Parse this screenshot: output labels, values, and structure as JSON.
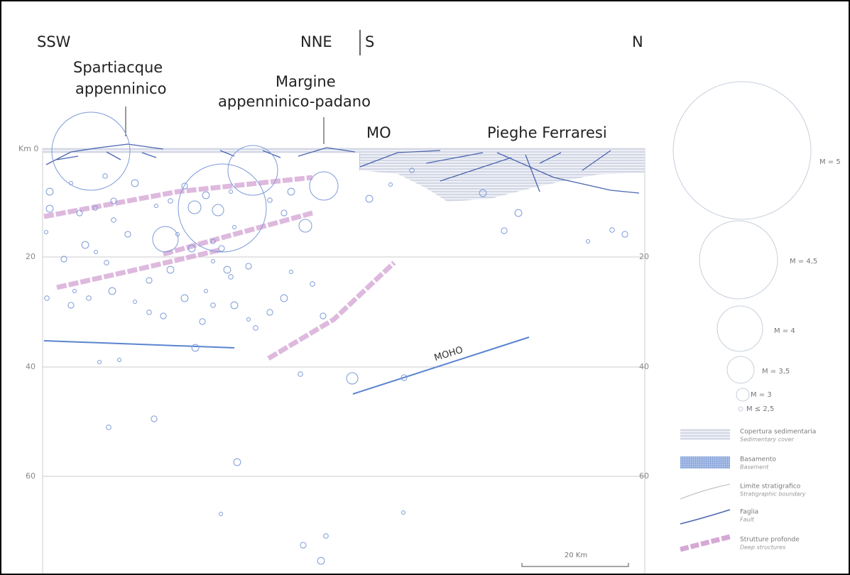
{
  "header": {
    "left": "SSW",
    "mid_left": "NNE",
    "mid_right": "S",
    "right": "N"
  },
  "labels": {
    "spartiacque": [
      "Spartiacque",
      "appenninico"
    ],
    "margine": [
      "Margine",
      "appenninico-padano"
    ],
    "mo": "MO",
    "pieghe": "Pieghe Ferraresi",
    "moho": "MOHO"
  },
  "depth_labels": [
    "Km 0",
    "20",
    "40",
    "60"
  ],
  "magnitudes": [
    "M = 5",
    "M = 4,5",
    "M = 4",
    "M = 3,5",
    "M = 3",
    "M ≤ 2,5"
  ],
  "legend": [
    {
      "label": "Copertura sedimentaria",
      "translation": "Sedimentary cover"
    },
    {
      "label": "Basamento",
      "translation": "Basement"
    },
    {
      "label": "Limite stratigrafico",
      "translation": "Stratigraphic boundary"
    },
    {
      "label": "Faglia",
      "translation": "Fault"
    },
    {
      "label": "Strutture profonde",
      "translation": "Deep structures"
    }
  ],
  "scale_bar": "20 Km"
}
